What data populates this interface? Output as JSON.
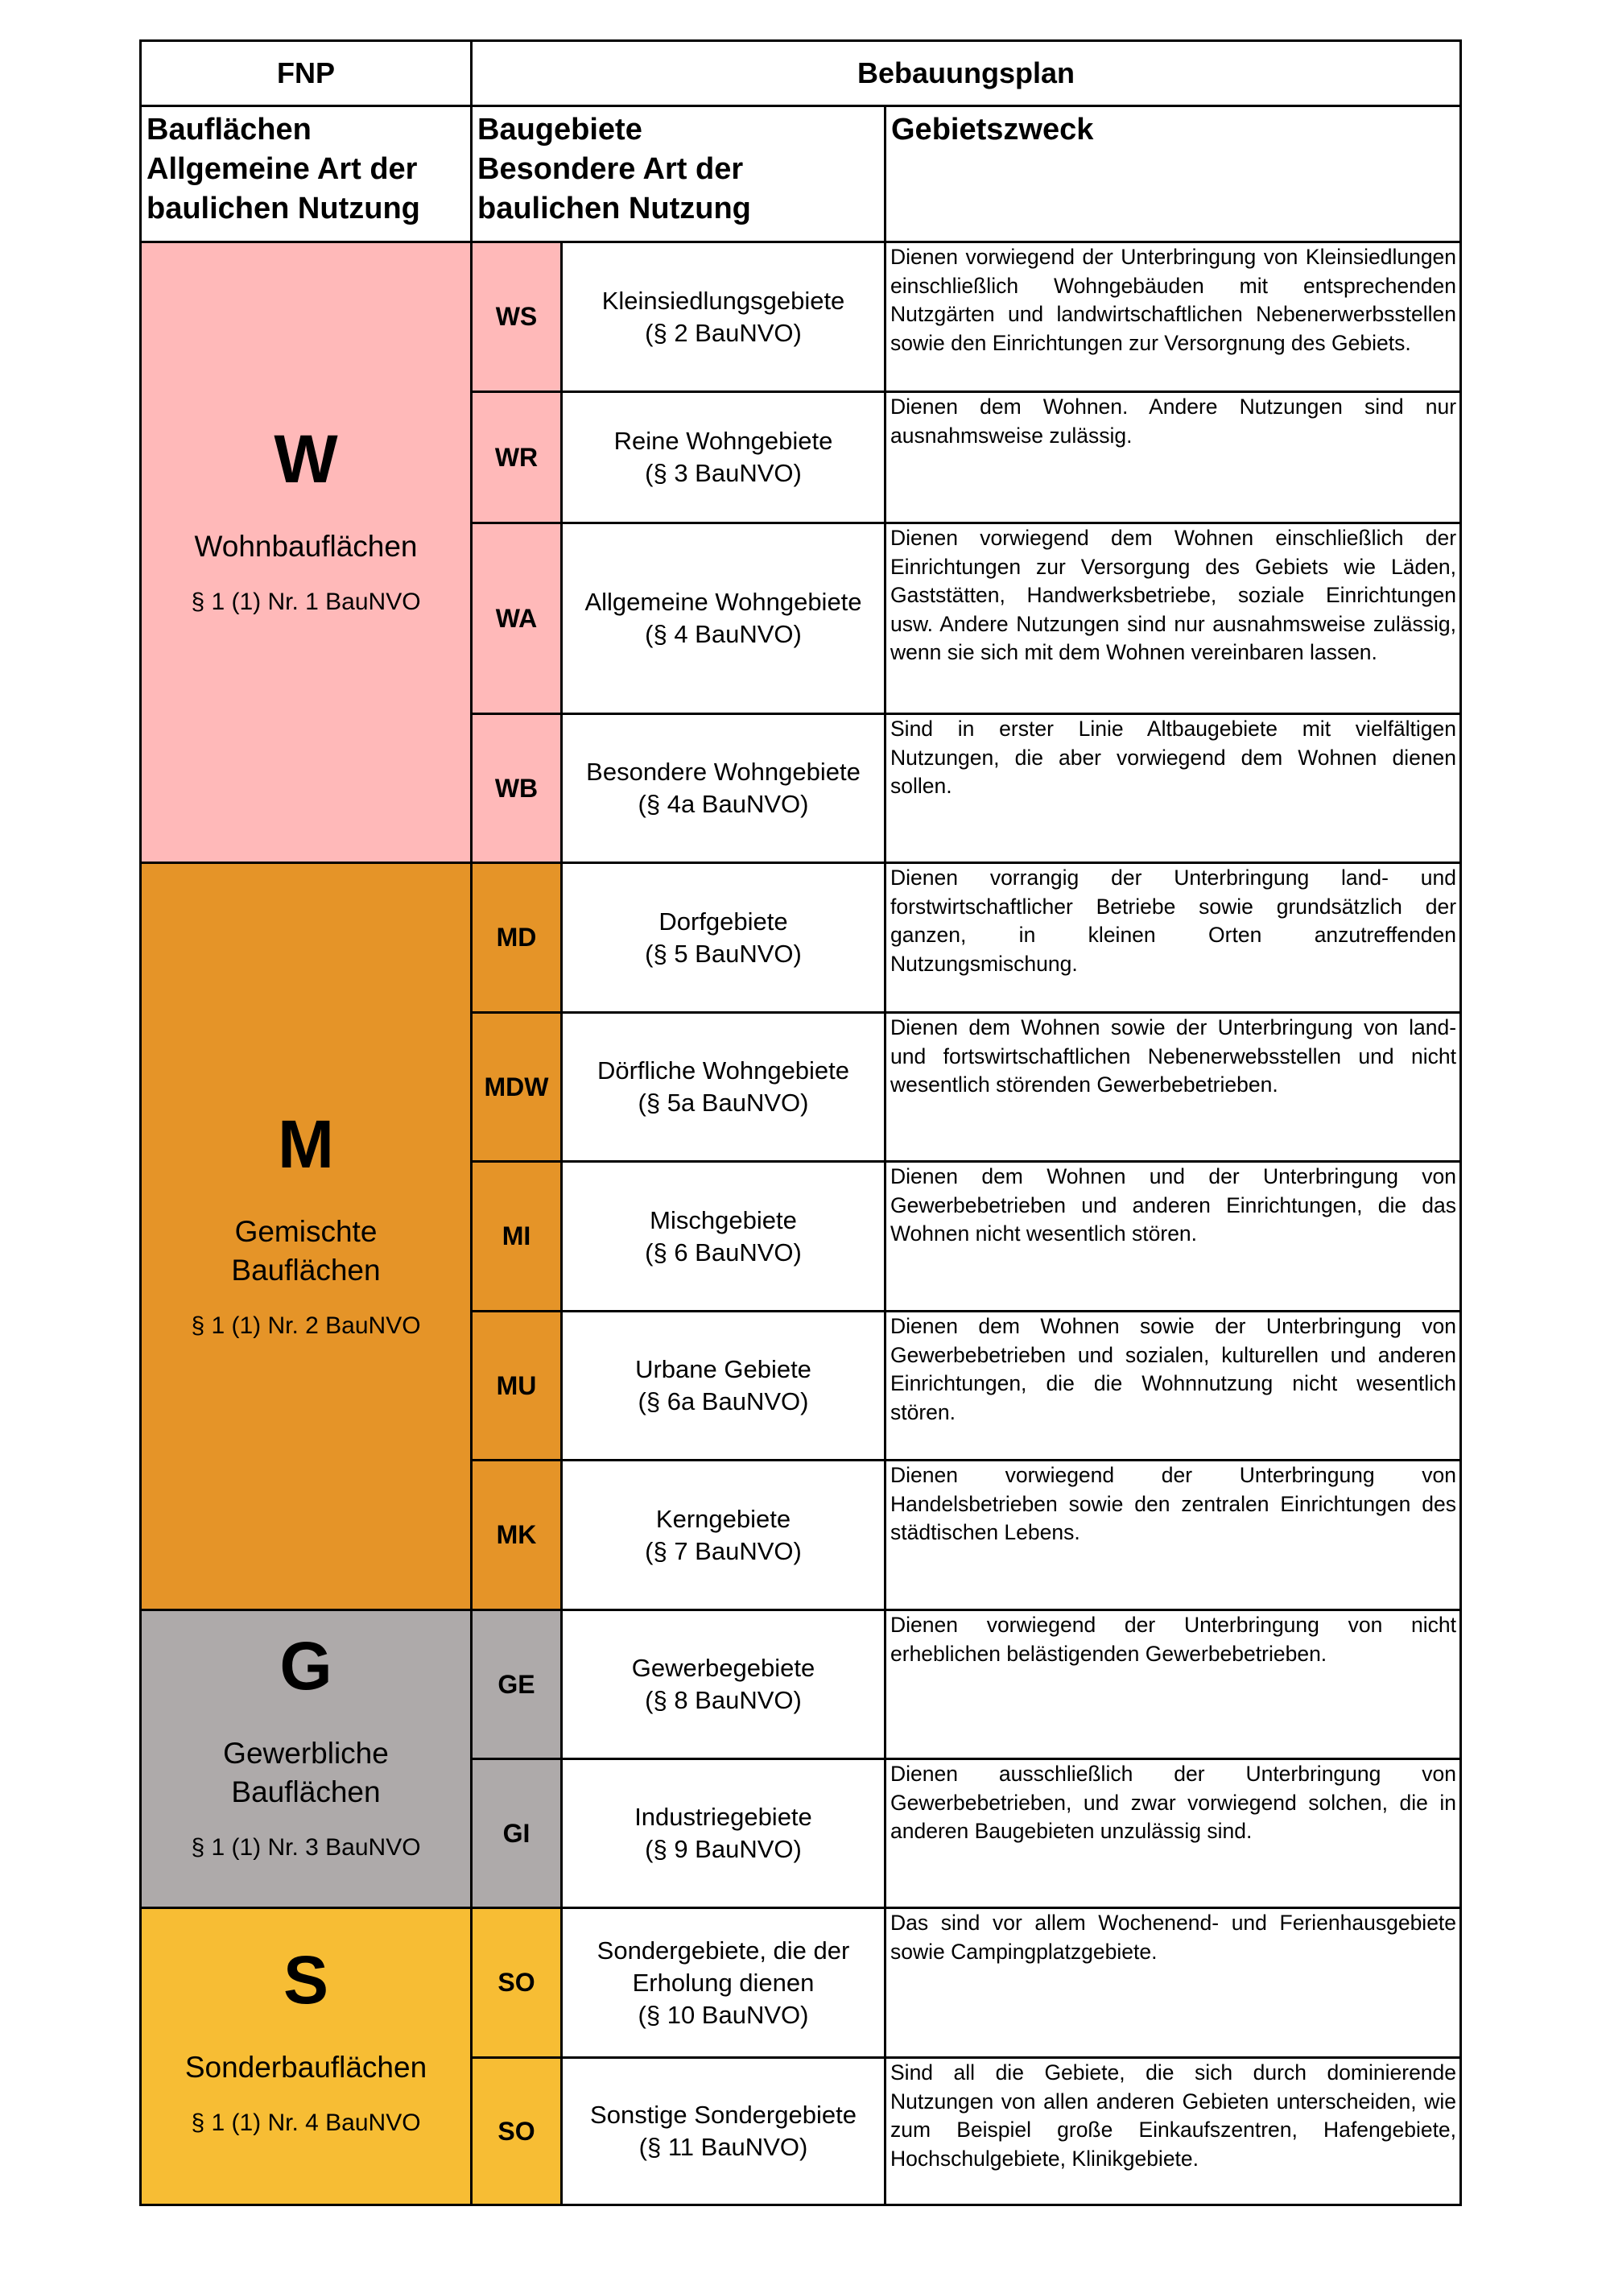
{
  "header": {
    "fnp": "FNP",
    "bplan": "Bebauungsplan",
    "col1": [
      "Bauflächen",
      "Allgemeine Art der",
      "baulichen Nutzung"
    ],
    "col2": [
      "Baugebiete",
      "Besondere Art der",
      "baulichen Nutzung"
    ],
    "col3": "Gebietszweck"
  },
  "colors": {
    "W": "#ffb9b9",
    "M": "#e59428",
    "G": "#aeaaaa",
    "S": "#f7bd34"
  },
  "groups": {
    "W": {
      "letter": "W",
      "name": "Wohnbauflächen",
      "para": "§ 1 (1) Nr. 1 BauNVO"
    },
    "M": {
      "letter": "M",
      "name1": "Gemischte",
      "name2": "Bauflächen",
      "para": "§ 1 (1) Nr. 2 BauNVO"
    },
    "G": {
      "letter": "G",
      "name1": "Gewerbliche",
      "name2": "Bauflächen",
      "para": "§ 1 (1) Nr. 3 BauNVO"
    },
    "S": {
      "letter": "S",
      "name": "Sonderbauflächen",
      "para": "§ 1 (1) Nr. 4 BauNVO"
    }
  },
  "rows": [
    {
      "code": "WS",
      "name": "Kleinsiedlungsgebiete",
      "para": "(§ 2 BauNVO)",
      "desc": "Dienen vorwiegend der Unterbringung von Kleinsiedlungen einschließlich Wohngebäuden mit entsprechenden Nutzgärten und landwirtschaftlichen Nebenerwerbsstellen sowie den Einrichtungen zur Versorgnung des Gebiets."
    },
    {
      "code": "WR",
      "name": "Reine Wohngebiete",
      "para": "(§ 3 BauNVO)",
      "desc": "Dienen dem Wohnen. Andere Nutzungen sind nur ausnahmsweise zulässig."
    },
    {
      "code": "WA",
      "name": "Allgemeine Wohngebiete",
      "para": "(§ 4 BauNVO)",
      "desc": "Dienen vorwiegend dem Wohnen einschließlich der Einrichtungen zur Versorgung des Gebiets wie Läden, Gaststätten, Handwerksbetriebe, soziale Einrichtungen usw. Andere Nutzungen sind nur ausnahmsweise zulässig, wenn sie sich mit dem Wohnen vereinbaren lassen."
    },
    {
      "code": "WB",
      "name": "Besondere Wohngebiete",
      "para": "(§ 4a BauNVO)",
      "desc": "Sind in erster Linie Altbaugebiete mit vielfältigen Nutzungen, die aber vorwiegend dem Wohnen dienen sollen."
    },
    {
      "code": "MD",
      "name": "Dorfgebiete",
      "para": "(§ 5 BauNVO)",
      "desc": "Dienen vorrangig der Unterbringung land- und forstwirtschaftlicher Betriebe sowie grundsätzlich der ganzen, in kleinen Orten anzutreffenden Nutzungsmischung."
    },
    {
      "code": "MDW",
      "name": "Dörfliche Wohngebiete",
      "para": "(§ 5a BauNVO)",
      "desc": "Dienen dem Wohnen sowie der Unterbringung von land- und fortswirtschaftlichen Nebenerwebsstellen und nicht wesentlich störenden Gewerbebetrieben."
    },
    {
      "code": "MI",
      "name": "Mischgebiete",
      "para": "(§ 6 BauNVO)",
      "desc": "Dienen dem Wohnen und der Unterbringung von Gewerbebetrieben und anderen Einrichtungen, die das Wohnen nicht wesentlich stören."
    },
    {
      "code": "MU",
      "name": "Urbane Gebiete",
      "para": "(§ 6a BauNVO)",
      "desc": "Dienen dem Wohnen sowie der Unterbringung von Gewerbebetrieben und sozialen, kulturellen und anderen Einrichtungen, die die Wohnnutzung nicht wesentlich stören."
    },
    {
      "code": "MK",
      "name": "Kerngebiete",
      "para": "(§ 7 BauNVO)",
      "desc": "Dienen vorwiegend der Unterbringung von Handelsbetrieben sowie den zentralen Einrichtungen des städtischen Lebens."
    },
    {
      "code": "GE",
      "name": "Gewerbegebiete",
      "para": "(§ 8 BauNVO)",
      "desc": "Dienen vorwiegend der Unterbringung von nicht erheblichen belästigenden Gewerbebetrieben."
    },
    {
      "code": "GI",
      "name": "Industriegebiete",
      "para": "(§ 9 BauNVO)",
      "desc": "Dienen ausschließlich der Unterbringung von Gewerbebetrieben, und zwar vorwiegend solchen, die in anderen Baugebieten unzulässig sind."
    },
    {
      "code": "SO",
      "name": "Sondergebiete, die der Erholung dienen",
      "para": "(§ 10 BauNVO)",
      "desc": "Das sind vor allem Wochenend- und Ferienhausgebiete sowie Campingplatzgebiete."
    },
    {
      "code": "SO",
      "name": "Sonstige Sondergebiete",
      "para": "(§ 11 BauNVO)",
      "desc": "Sind all die Gebiete, die sich durch dominierende Nutzungen von allen anderen Gebieten unterscheiden, wie zum Beispiel große Einkaufszentren, Hafengebiete, Hochschulgebiete, Klinikgebiete."
    }
  ]
}
